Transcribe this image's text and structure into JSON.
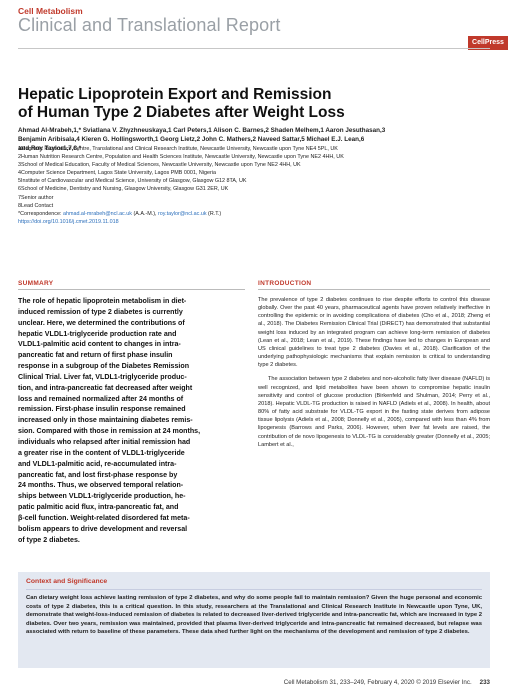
{
  "header": {
    "journal": "Cell Metabolism",
    "article_type": "Clinical and Translational Report",
    "publisher_logo": "CellPress"
  },
  "title_lines": [
    "Hepatic Lipoprotein Export and Remission",
    "of Human Type 2 Diabetes after Weight Loss"
  ],
  "authors_lines": [
    "Ahmad Al-Mrabeh,1,* Sviatlana V. Zhyzhneuskaya,1 Carl Peters,1 Alison C. Barnes,2 Shaden Melhem,1 Aaron Jesuthasan,3",
    "Benjamin Aribisala,4 Kieren G. Hollingsworth,1 Georg Lietz,2 John C. Mathers,2 Naveed Sattar,5 Michael E.J. Lean,6",
    "and Roy Taylor1,7,8,*"
  ],
  "affiliations": [
    "1Magnetic Resonance Centre, Translational and Clinical Research Institute, Newcastle University, Newcastle upon Tyne NE4 5PL, UK",
    "2Human Nutrition Research Centre, Population and Health Sciences Institute, Newcastle University, Newcastle upon Tyne NE2 4HH, UK",
    "3School of Medical Education, Faculty of Medical Sciences, Newcastle University, Newcastle upon Tyne NE2 4HH, UK",
    "4Computer Science Department, Lagos State University, Lagos PMB 0001, Nigeria",
    "5Institute of Cardiovascular and Medical Science, University of Glasgow, Glasgow G12 8TA, UK",
    "6School of Medicine, Dentistry and Nursing, Glasgow University, Glasgow G31 2ER, UK",
    "7Senior author",
    "8Lead Contact"
  ],
  "correspondence": {
    "label": "*Correspondence: ",
    "email1": "ahmad.al-mrabeh@ncl.ac.uk",
    "mid": " (A.A.-M.), ",
    "email2": "roy.taylor@ncl.ac.uk",
    "end": " (R.T.)"
  },
  "doi": "https://doi.org/10.1016/j.cmet.2019.11.018",
  "summary": {
    "heading": "SUMMARY",
    "lines": [
      "The role of hepatic lipoprotein metabolism in diet-",
      "induced remission of type 2 diabetes is currently",
      "unclear. Here, we determined the contributions of",
      "hepatic VLDL1-triglyceride production rate and",
      "VLDL1-palmitic acid content to changes in intra-",
      "pancreatic fat and return of first phase insulin",
      "response in a subgroup of the Diabetes Remission",
      "Clinical Trial. Liver fat, VLDL1-triglyceride produc-",
      "tion, and intra-pancreatic fat decreased after weight",
      "loss and remained normalized after 24 months of",
      "remission. First-phase insulin response remained",
      "increased only in those maintaining diabetes remis-",
      "sion. Compared with those in remission at 24 months,",
      "individuals who relapsed after initial remission had",
      "a greater rise in the content of VLDL1-triglyceride",
      "and VLDL1-palmitic acid, re-accumulated intra-",
      "pancreatic fat, and lost first-phase response by",
      "24 months. Thus, we observed temporal relation-",
      "ships between VLDL1-triglyceride production, he-",
      "patic palmitic acid flux, intra-pancreatic fat, and",
      "β-cell function. Weight-related disordered fat meta-",
      "bolism appears to drive development and reversal",
      "of type 2 diabetes."
    ]
  },
  "introduction": {
    "heading": "INTRODUCTION",
    "paragraphs": [
      "The prevalence of type 2 diabetes continues to rise despite efforts to control this disease globally. Over the past 40 years, pharmaceutical agents have proven relatively ineffective in controlling the epidemic or in avoiding complications of diabetes (Cho et al., 2018; Zheng et al., 2018). The Diabetes Remission Clinical Trial (DiRECT) has demonstrated that substantial weight loss induced by an integrated program can achieve long-term remission of diabetes (Lean et al., 2018; Lean et al., 2019). These findings have led to changes in European and US clinical guidelines to treat type 2 diabetes (Davies et al., 2018). Clarification of the underlying pathophysiologic mechanisms that explain remission is critical to understanding type 2 diabetes.",
      "The association between type 2 diabetes and non-alcoholic fatty liver disease (NAFLD) is well recognized, and lipid metabolites have been shown to compromise hepatic insulin sensitivity and control of glucose production (Birkenfeld and Shulman, 2014; Perry et al., 2018). Hepatic VLDL-TG production is raised in NAFLD (Adiels et al., 2008). In health, about 80% of fatty acid substrate for VLDL-TG export in the fasting state derives from adipose tissue lipolysis (Adiels et al., 2008; Donnelly et al., 2005), compared with less than 4% from lipogenesis (Barrows and Parks, 2006). However, when liver fat levels are raised, the contribution of de novo lipogenesis to VLDL-TG is considerably greater (Donnelly et al., 2005; Lambert et al.,"
    ]
  },
  "context": {
    "heading": "Context and Significance",
    "text": "Can dietary weight loss achieve lasting remission of type 2 diabetes, and why do some people fail to maintain remission? Given the huge personal and economic costs of type 2 diabetes, this is a critical question. In this study, researchers at the Translational and Clinical Research Institute in Newcastle upon Tyne, UK, demonstrate that weight-loss-induced remission of diabetes is related to decreased liver-derived triglyceride and intra-pancreatic fat, which are increased in type 2 diabetes. Over two years, remission was maintained, provided that plasma liver-derived triglyceride and intra-pancreatic fat remained decreased, but relapse was associated with return to baseline of these parameters. These data shed further light on the mechanisms of the development and remission of type 2 diabetes."
  },
  "footer": {
    "citation": "Cell Metabolism 31, 233–249, February 4, 2020 © 2019 Elsevier Inc.",
    "page": "233"
  }
}
